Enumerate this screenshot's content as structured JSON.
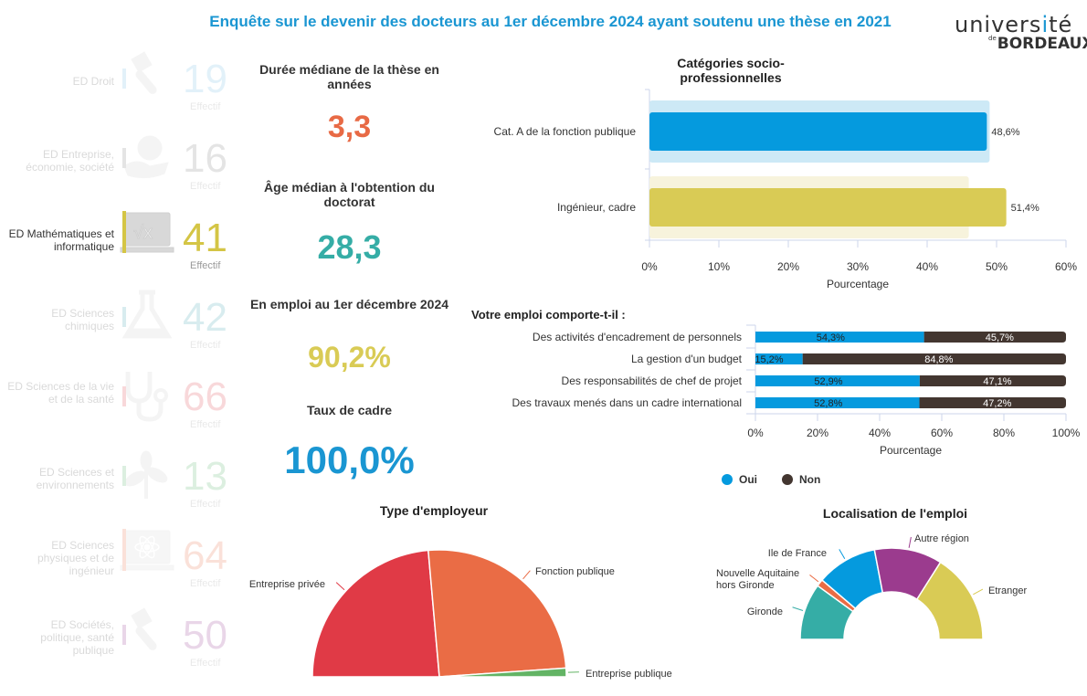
{
  "header": {
    "title": "Enquête sur le devenir des docteurs au 1er décembre 2024 ayant soutenu une thèse en 2021",
    "logo_line1_a": "univers",
    "logo_line1_b": "i",
    "logo_line1_c": "té",
    "logo_line2_prefix": "de",
    "logo_line2": "BORDEAUX"
  },
  "colors": {
    "accent_blue": "#1a96d2",
    "orange": "#e86a45",
    "teal": "#35ada6",
    "yellow": "#d9cb55",
    "oui": "#059ade",
    "non": "#433630"
  },
  "doctoral_schools": [
    {
      "label": "ED Droit",
      "count": "19",
      "effectif": "Effectif",
      "color": "#7fc3e8",
      "icon": "gavel-icon",
      "active": false
    },
    {
      "label": "ED Entreprise, économie, société",
      "count": "16",
      "effectif": "Effectif",
      "color": "#8a8a8a",
      "icon": "euro-hand-icon",
      "active": false
    },
    {
      "label": "ED Mathématiques et informatique",
      "count": "41",
      "effectif": "Effectif",
      "color": "#d4c545",
      "icon": "sqrt-laptop-icon",
      "active": true
    },
    {
      "label": "ED Sciences chimiques",
      "count": "42",
      "effectif": "Effectif",
      "color": "#52aeb8",
      "icon": "flask-icon",
      "active": false
    },
    {
      "label": "ED Sciences de la vie et de la santé",
      "count": "66",
      "effectif": "Effectif",
      "color": "#e1525a",
      "icon": "stethoscope-icon",
      "active": false
    },
    {
      "label": "ED Sciences et environnements",
      "count": "13",
      "effectif": "Effectif",
      "color": "#66bb77",
      "icon": "leaf-icon",
      "active": false
    },
    {
      "label": "ED Sciences physiques et de ingénieur",
      "count": "64",
      "effectif": "Effectif",
      "color": "#ec7a55",
      "icon": "atom-laptop-icon",
      "active": false
    },
    {
      "label": "ED Sociétés, politique, santé publique",
      "count": "50",
      "effectif": "Effectif",
      "color": "#a04a9a",
      "icon": "gavel-icon",
      "active": false
    }
  ],
  "kpis": [
    {
      "title": "Durée médiane de la thèse en années",
      "value": "3,3",
      "color": "#e86a45"
    },
    {
      "title": "Âge médian à l'obtention du doctorat",
      "value": "28,3",
      "color": "#35ada6"
    },
    {
      "title": "En emploi au 1er décembre 2024",
      "value": "90,2%",
      "color": "#d9cb55"
    },
    {
      "title": "Taux de cadre",
      "value": "100,0%",
      "color": "#1a96d2"
    }
  ],
  "chart_data": [
    {
      "type": "bar",
      "orientation": "horizontal",
      "title": "Catégories socio-professionnelles",
      "categories": [
        "Cat. A de la fonction publique",
        "Ingénieur, cadre"
      ],
      "values": [
        48.6,
        51.4
      ],
      "value_labels": [
        "48,6%",
        "51,4%"
      ],
      "reference_values": [
        49,
        46
      ],
      "bar_colors": [
        "#059ade",
        "#d9cb55"
      ],
      "reference_colors": [
        "#cde9f6",
        "#f7f3dc"
      ],
      "xlabel": "Pourcentage",
      "xlim": [
        0,
        60
      ],
      "xticks": [
        "0%",
        "10%",
        "20%",
        "30%",
        "40%",
        "50%",
        "60%"
      ]
    },
    {
      "type": "bar",
      "orientation": "horizontal",
      "stacked": true,
      "title": "Votre emploi comporte-t-il :",
      "categories": [
        "Des activités d'encadrement de personnels",
        "La gestion d'un budget",
        "Des responsabilités de chef de projet",
        "Des travaux menés dans un cadre international"
      ],
      "series": [
        {
          "name": "Oui",
          "values": [
            54.3,
            15.2,
            52.9,
            52.8
          ],
          "labels": [
            "54,3%",
            "15,2%",
            "52,9%",
            "52,8%"
          ],
          "color": "#059ade"
        },
        {
          "name": "Non",
          "values": [
            45.7,
            84.8,
            47.1,
            47.2
          ],
          "labels": [
            "45,7%",
            "84,8%",
            "47,1%",
            "47,2%"
          ],
          "color": "#433630"
        }
      ],
      "xlabel": "Pourcentage",
      "xlim": [
        0,
        100
      ],
      "xticks": [
        "0%",
        "20%",
        "40%",
        "60%",
        "80%",
        "100%"
      ],
      "legend": "bottom"
    },
    {
      "type": "pie",
      "variant": "semi-circle",
      "title": "Type d'employeur",
      "slices": [
        {
          "label": "Entreprise privée",
          "value": 47.2,
          "color": "#e03a46"
        },
        {
          "label": "Fonction publique",
          "value": 50.6,
          "color": "#ea6c45"
        },
        {
          "label": "Entreprise publique",
          "value": 2.2,
          "color": "#63b465"
        }
      ]
    },
    {
      "type": "pie",
      "variant": "semi-donut",
      "title": "Localisation de l'emploi",
      "slices": [
        {
          "label": "Gironde",
          "value": 20,
          "color": "#35ada6"
        },
        {
          "label": "Nouvelle Aquitaine hors Gironde",
          "value": 2.5,
          "color": "#ea6c45"
        },
        {
          "label": "Ile de France",
          "value": 21.5,
          "color": "#059ade"
        },
        {
          "label": "Autre région",
          "value": 24,
          "color": "#9b3b8e"
        },
        {
          "label": "Etranger",
          "value": 32,
          "color": "#d9cb55"
        }
      ]
    }
  ]
}
